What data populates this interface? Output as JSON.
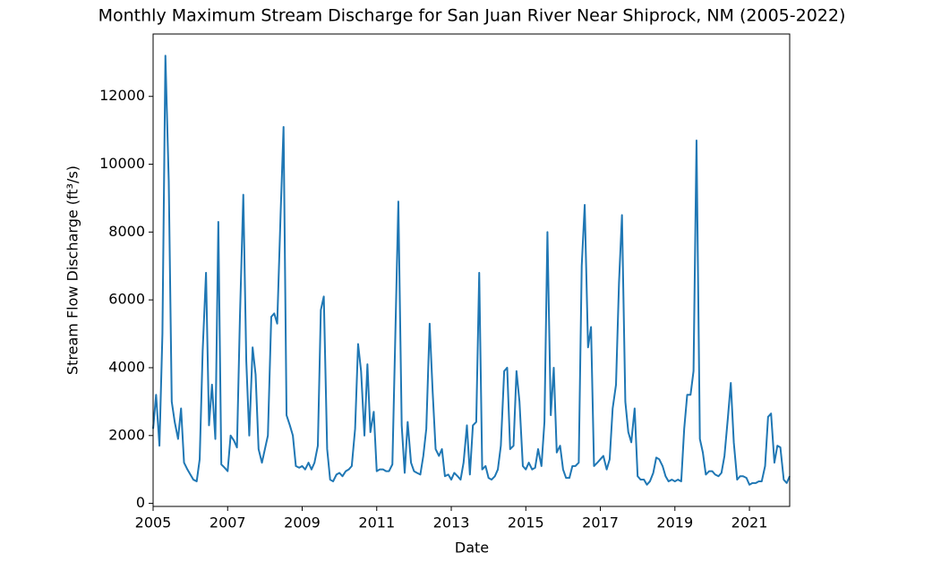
{
  "chart_data": {
    "type": "line",
    "title": "Monthly Maximum Stream Discharge for San Juan River Near Shiprock, NM (2005-2022)",
    "x_label": "Date",
    "y_label": "Stream Flow Discharge (ft³/s)",
    "x": [
      2005,
      2005.08,
      2005.17,
      2005.25,
      2005.33,
      2005.42,
      2005.5,
      2005.58,
      2005.67,
      2005.75,
      2005.83,
      2005.92,
      2006,
      2006.08,
      2006.17,
      2006.25,
      2006.33,
      2006.42,
      2006.5,
      2006.58,
      2006.67,
      2006.75,
      2006.83,
      2006.92,
      2007,
      2007.08,
      2007.17,
      2007.25,
      2007.33,
      2007.42,
      2007.5,
      2007.58,
      2007.67,
      2007.75,
      2007.83,
      2007.92,
      2008,
      2008.08,
      2008.17,
      2008.25,
      2008.33,
      2008.42,
      2008.5,
      2008.58,
      2008.67,
      2008.75,
      2008.83,
      2008.92,
      2009,
      2009.08,
      2009.17,
      2009.25,
      2009.33,
      2009.42,
      2009.5,
      2009.58,
      2009.67,
      2009.75,
      2009.83,
      2009.92,
      2010,
      2010.08,
      2010.17,
      2010.25,
      2010.33,
      2010.42,
      2010.5,
      2010.58,
      2010.67,
      2010.75,
      2010.83,
      2010.92,
      2011,
      2011.08,
      2011.17,
      2011.25,
      2011.33,
      2011.42,
      2011.5,
      2011.58,
      2011.67,
      2011.75,
      2011.83,
      2011.92,
      2012,
      2012.08,
      2012.17,
      2012.25,
      2012.33,
      2012.42,
      2012.5,
      2012.58,
      2012.67,
      2012.75,
      2012.83,
      2012.92,
      2013,
      2013.08,
      2013.17,
      2013.25,
      2013.33,
      2013.42,
      2013.5,
      2013.58,
      2013.67,
      2013.75,
      2013.83,
      2013.92,
      2014,
      2014.08,
      2014.17,
      2014.25,
      2014.33,
      2014.42,
      2014.5,
      2014.58,
      2014.67,
      2014.75,
      2014.83,
      2014.92,
      2015,
      2015.08,
      2015.17,
      2015.25,
      2015.33,
      2015.42,
      2015.5,
      2015.58,
      2015.67,
      2015.75,
      2015.83,
      2015.92,
      2016,
      2016.08,
      2016.17,
      2016.25,
      2016.33,
      2016.42,
      2016.5,
      2016.58,
      2016.67,
      2016.75,
      2016.83,
      2016.92,
      2017,
      2017.08,
      2017.17,
      2017.25,
      2017.33,
      2017.42,
      2017.5,
      2017.58,
      2017.67,
      2017.75,
      2017.83,
      2017.92,
      2018,
      2018.08,
      2018.17,
      2018.25,
      2018.33,
      2018.42,
      2018.5,
      2018.58,
      2018.67,
      2018.75,
      2018.83,
      2018.92,
      2019,
      2019.08,
      2019.17,
      2019.25,
      2019.33,
      2019.42,
      2019.5,
      2019.58,
      2019.67,
      2019.75,
      2019.83,
      2019.92,
      2020,
      2020.08,
      2020.17,
      2020.25,
      2020.33,
      2020.42,
      2020.5,
      2020.58,
      2020.67,
      2020.75,
      2020.83,
      2020.92,
      2021,
      2021.08,
      2021.17,
      2021.25,
      2021.33,
      2021.42,
      2021.5,
      2021.58,
      2021.67,
      2021.75,
      2021.83,
      2021.92,
      2022,
      2022.08
    ],
    "series": [
      {
        "color": "#1f77b4",
        "values": [
          2200,
          3200,
          1700,
          5000,
          13200,
          9500,
          3000,
          2400,
          1900,
          2800,
          1200,
          1000,
          850,
          700,
          650,
          1300,
          4500,
          6800,
          2300,
          3500,
          1900,
          8300,
          1150,
          1050,
          950,
          2000,
          1850,
          1650,
          5500,
          9100,
          4200,
          2000,
          4600,
          3800,
          1600,
          1200,
          1600,
          2000,
          5500,
          5600,
          5300,
          8500,
          11100,
          2600,
          2300,
          2000,
          1100,
          1050,
          1100,
          1000,
          1200,
          1000,
          1200,
          1700,
          5700,
          6100,
          1600,
          700,
          650,
          850,
          900,
          800,
          950,
          1000,
          1100,
          2200,
          4700,
          3900,
          2000,
          4100,
          2100,
          2700,
          950,
          1000,
          1000,
          950,
          950,
          1150,
          5000,
          8900,
          2300,
          900,
          2400,
          1200,
          950,
          900,
          850,
          1400,
          2200,
          5300,
          3300,
          1600,
          1400,
          1600,
          800,
          850,
          700,
          900,
          800,
          700,
          1200,
          2300,
          850,
          2300,
          2400,
          6800,
          1000,
          1100,
          750,
          700,
          800,
          1000,
          1700,
          3900,
          4000,
          1600,
          1700,
          3900,
          3000,
          1100,
          1000,
          1200,
          1000,
          1050,
          1600,
          1100,
          2400,
          8000,
          2600,
          4000,
          1500,
          1700,
          1000,
          750,
          750,
          1100,
          1100,
          1200,
          7000,
          8800,
          4600,
          5200,
          1100,
          1200,
          1300,
          1400,
          1000,
          1300,
          2800,
          3500,
          6500,
          8500,
          3000,
          2100,
          1800,
          2800,
          800,
          700,
          700,
          550,
          650,
          900,
          1350,
          1300,
          1100,
          800,
          650,
          700,
          650,
          700,
          650,
          2200,
          3200,
          3200,
          3900,
          10700,
          1900,
          1500,
          850,
          950,
          950,
          850,
          800,
          900,
          1400,
          2500,
          3550,
          1800,
          700,
          800,
          800,
          750,
          550,
          600,
          600,
          650,
          650,
          1100,
          2550,
          2650,
          1200,
          1700,
          1650,
          700,
          600,
          800
        ]
      }
    ],
    "xlim": [
      2005,
      2022.08
    ],
    "xticks": [
      2005,
      2007,
      2009,
      2011,
      2013,
      2015,
      2017,
      2019,
      2021
    ],
    "ylim": [
      -90,
      13840
    ],
    "yticks": [
      0,
      2000,
      4000,
      6000,
      8000,
      10000,
      12000
    ]
  }
}
